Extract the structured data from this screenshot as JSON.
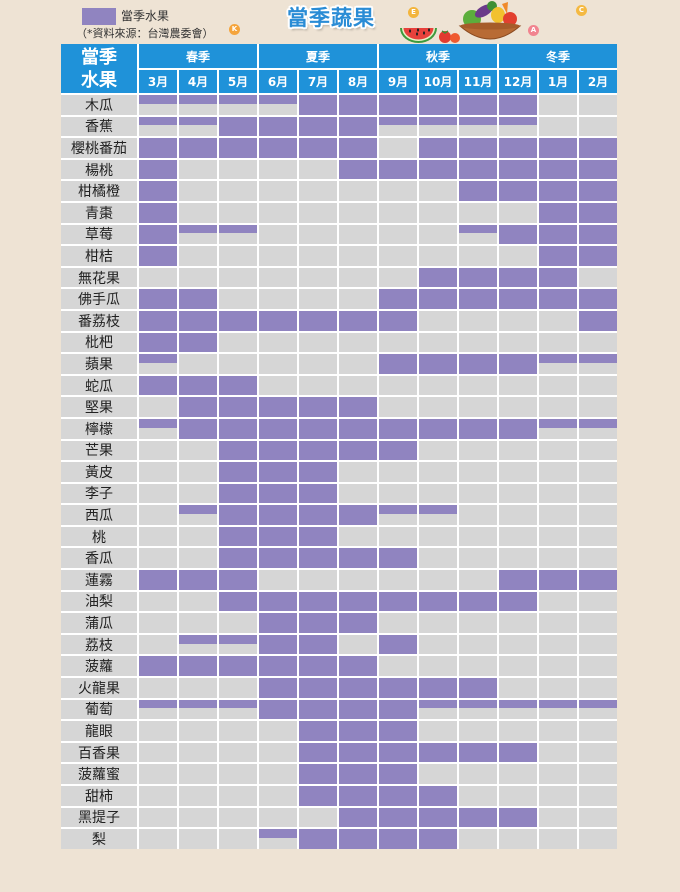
{
  "colors": {
    "background": "#eee3d4",
    "header": "#1f92d9",
    "title": "#2a8cd5",
    "in_season": "#9084c0",
    "off_season": "#d6d6d6"
  },
  "legend": {
    "label": "當季水果",
    "source": "（*資料來源：台灣農委會）"
  },
  "decor": {
    "vitamin_badges": [
      "K",
      "E",
      "A",
      "C"
    ]
  },
  "chart_data": {
    "type": "heatmap",
    "title": "當季蔬果",
    "corner_label": [
      "當季",
      "水果"
    ],
    "x_groups": [
      {
        "label": "春季",
        "members": [
          "3月",
          "4月",
          "5月"
        ]
      },
      {
        "label": "夏季",
        "members": [
          "6月",
          "7月",
          "8月"
        ]
      },
      {
        "label": "秋季",
        "members": [
          "9月",
          "10月",
          "11月"
        ]
      },
      {
        "label": "冬季",
        "members": [
          "12月",
          "1月",
          "2月"
        ]
      }
    ],
    "x": [
      "3月",
      "4月",
      "5月",
      "6月",
      "7月",
      "8月",
      "9月",
      "10月",
      "11月",
      "12月",
      "1月",
      "2月"
    ],
    "legend": [
      {
        "label": "當季水果",
        "color": "#9084c0"
      }
    ],
    "rows": [
      {
        "name": "木瓜",
        "values": [
          0.5,
          0.5,
          0.5,
          0.5,
          1,
          1,
          1,
          1,
          1,
          1,
          0,
          0
        ]
      },
      {
        "name": "香蕉",
        "values": [
          0.5,
          0.5,
          1,
          1,
          1,
          1,
          0.5,
          0.5,
          0.5,
          0.5,
          0,
          0
        ]
      },
      {
        "name": "櫻桃番茄",
        "values": [
          1,
          1,
          1,
          1,
          1,
          1,
          0,
          1,
          1,
          1,
          1,
          1
        ]
      },
      {
        "name": "楊桃",
        "values": [
          1,
          0,
          0,
          0,
          0,
          1,
          1,
          1,
          1,
          1,
          1,
          1
        ]
      },
      {
        "name": "柑橘橙",
        "values": [
          1,
          0,
          0,
          0,
          0,
          0,
          0,
          0,
          1,
          1,
          1,
          1
        ]
      },
      {
        "name": "青棗",
        "values": [
          1,
          0,
          0,
          0,
          0,
          0,
          0,
          0,
          0,
          0,
          1,
          1
        ]
      },
      {
        "name": "草莓",
        "values": [
          1,
          0.5,
          0.5,
          0,
          0,
          0,
          0,
          0,
          0.5,
          1,
          1,
          1
        ]
      },
      {
        "name": "柑桔",
        "values": [
          1,
          0,
          0,
          0,
          0,
          0,
          0,
          0,
          0,
          0,
          1,
          1
        ]
      },
      {
        "name": "無花果",
        "values": [
          0,
          0,
          0,
          0,
          0,
          0,
          0,
          1,
          1,
          1,
          1,
          0
        ]
      },
      {
        "name": "佛手瓜",
        "values": [
          1,
          1,
          0,
          0,
          0,
          0,
          1,
          1,
          1,
          1,
          1,
          1
        ]
      },
      {
        "name": "番荔枝",
        "values": [
          1,
          1,
          1,
          1,
          1,
          1,
          1,
          0,
          0,
          0,
          0,
          1
        ]
      },
      {
        "name": "枇杷",
        "values": [
          1,
          1,
          0,
          0,
          0,
          0,
          0,
          0,
          0,
          0,
          0,
          0
        ]
      },
      {
        "name": "蘋果",
        "values": [
          0.5,
          0,
          0,
          0,
          0,
          0,
          1,
          1,
          1,
          1,
          0.5,
          0.5
        ]
      },
      {
        "name": "蛇瓜",
        "values": [
          1,
          1,
          1,
          0,
          0,
          0,
          0,
          0,
          0,
          0,
          0,
          0
        ]
      },
      {
        "name": "堅果",
        "values": [
          0,
          1,
          1,
          1,
          1,
          1,
          0,
          0,
          0,
          0,
          0,
          0
        ]
      },
      {
        "name": "檸檬",
        "values": [
          0.5,
          1,
          1,
          1,
          1,
          1,
          1,
          1,
          1,
          1,
          0.5,
          0.5
        ]
      },
      {
        "name": "芒果",
        "values": [
          0,
          0,
          1,
          1,
          1,
          1,
          1,
          0,
          0,
          0,
          0,
          0
        ]
      },
      {
        "name": "黃皮",
        "values": [
          0,
          0,
          1,
          1,
          1,
          0,
          0,
          0,
          0,
          0,
          0,
          0
        ]
      },
      {
        "name": "李子",
        "values": [
          0,
          0,
          1,
          1,
          1,
          0,
          0,
          0,
          0,
          0,
          0,
          0
        ]
      },
      {
        "name": "西瓜",
        "values": [
          0,
          0.5,
          1,
          1,
          1,
          1,
          0.5,
          0.5,
          0,
          0,
          0,
          0
        ]
      },
      {
        "name": "桃",
        "values": [
          0,
          0,
          1,
          1,
          1,
          0,
          0,
          0,
          0,
          0,
          0,
          0
        ]
      },
      {
        "name": "香瓜",
        "values": [
          0,
          0,
          1,
          1,
          1,
          1,
          1,
          0,
          0,
          0,
          0,
          0
        ]
      },
      {
        "name": "蓮霧",
        "values": [
          1,
          1,
          1,
          0,
          0,
          0,
          0,
          0,
          0,
          1,
          1,
          1
        ]
      },
      {
        "name": "油梨",
        "values": [
          0,
          0,
          1,
          1,
          1,
          1,
          1,
          1,
          1,
          1,
          0,
          0
        ]
      },
      {
        "name": "蒲瓜",
        "values": [
          0,
          0,
          0,
          1,
          1,
          1,
          0,
          0,
          0,
          0,
          0,
          0
        ]
      },
      {
        "name": "荔枝",
        "values": [
          0,
          0.5,
          0.5,
          1,
          1,
          0,
          1,
          0,
          0,
          0,
          0,
          0
        ]
      },
      {
        "name": "菠蘿",
        "values": [
          1,
          1,
          1,
          1,
          1,
          1,
          0,
          0,
          0,
          0,
          0,
          0
        ]
      },
      {
        "name": "火龍果",
        "values": [
          0,
          0,
          0,
          1,
          1,
          1,
          1,
          1,
          1,
          0,
          0,
          0
        ]
      },
      {
        "name": "葡萄",
        "values": [
          0.5,
          0.5,
          0.5,
          1,
          1,
          1,
          1,
          0.5,
          0.5,
          0.5,
          0.5,
          0.5
        ]
      },
      {
        "name": "龍眼",
        "values": [
          0,
          0,
          0,
          0,
          1,
          1,
          1,
          0,
          0,
          0,
          0,
          0
        ]
      },
      {
        "name": "百香果",
        "values": [
          0,
          0,
          0,
          0,
          1,
          1,
          1,
          1,
          1,
          1,
          0,
          0
        ]
      },
      {
        "name": "菠蘿蜜",
        "values": [
          0,
          0,
          0,
          0,
          1,
          1,
          1,
          0,
          0,
          0,
          0,
          0
        ]
      },
      {
        "name": "甜柿",
        "values": [
          0,
          0,
          0,
          0,
          1,
          1,
          1,
          1,
          0,
          0,
          0,
          0
        ]
      },
      {
        "name": "黑提子",
        "values": [
          0,
          0,
          0,
          0,
          0,
          1,
          1,
          1,
          1,
          1,
          0,
          0
        ]
      },
      {
        "name": "梨",
        "values": [
          0,
          0,
          0,
          0.5,
          1,
          1,
          1,
          1,
          0,
          0,
          0,
          0
        ]
      }
    ]
  }
}
